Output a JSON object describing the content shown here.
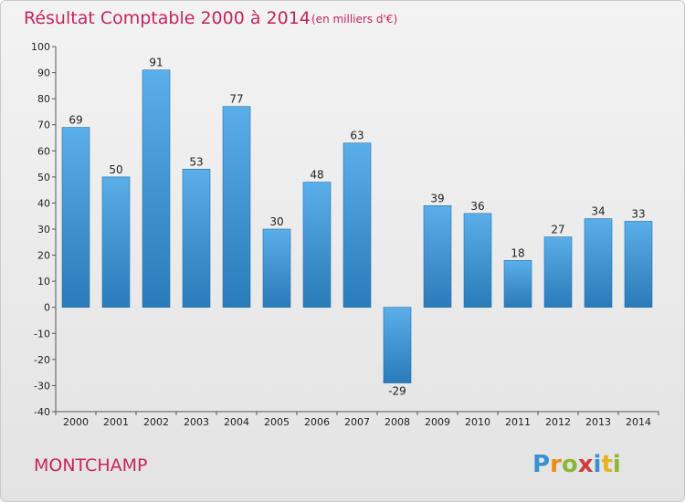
{
  "chart_data": {
    "type": "bar",
    "title": "Résultat Comptable 2000 à 2014",
    "subtitle": "(en milliers d'€)",
    "categories": [
      "2000",
      "2001",
      "2002",
      "2003",
      "2004",
      "2005",
      "2006",
      "2007",
      "2008",
      "2009",
      "2010",
      "2011",
      "2012",
      "2013",
      "2014"
    ],
    "values": [
      69,
      50,
      91,
      53,
      77,
      30,
      48,
      63,
      -29,
      39,
      36,
      18,
      27,
      34,
      33
    ],
    "ylim": [
      -40,
      100
    ],
    "yticks": [
      100,
      90,
      80,
      70,
      60,
      50,
      40,
      30,
      20,
      10,
      0,
      -10,
      -20,
      -30,
      -40
    ],
    "xlabel": "",
    "ylabel": "",
    "grid": false,
    "bar_color_top": "#5aaee9",
    "bar_color_bottom": "#2a7bb9"
  },
  "footer": {
    "commune": "MONTCHAMP",
    "brand_letters": [
      {
        "char": "P",
        "color": "#3a8fd0"
      },
      {
        "char": "r",
        "color": "#e88c1c"
      },
      {
        "char": "o",
        "color": "#8ab833"
      },
      {
        "char": "x",
        "color": "#d23b3b"
      },
      {
        "char": "i",
        "color": "#3a8fd0"
      },
      {
        "char": "t",
        "color": "#e8b21c"
      },
      {
        "char": "i",
        "color": "#8ab833"
      }
    ]
  }
}
